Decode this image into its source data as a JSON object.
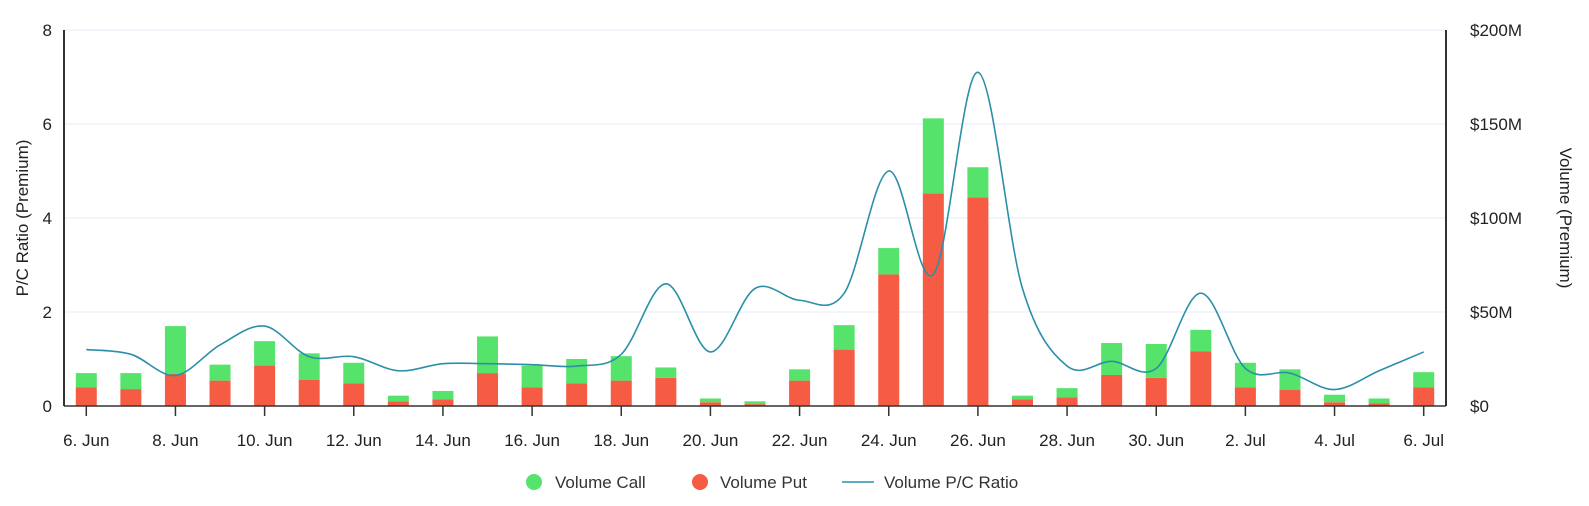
{
  "chart_data": {
    "type": "bar",
    "stacked": true,
    "categories": [
      "6. Jun",
      "7. Jun",
      "8. Jun",
      "9. Jun",
      "10. Jun",
      "11. Jun",
      "12. Jun",
      "13. Jun",
      "14. Jun",
      "15. Jun",
      "16. Jun",
      "17. Jun",
      "18. Jun",
      "19. Jun",
      "20. Jun",
      "21. Jun",
      "22. Jun",
      "23. Jun",
      "24. Jun",
      "25. Jun",
      "26. Jun",
      "27. Jun",
      "28. Jun",
      "29. Jun",
      "30. Jun",
      "1. Jul",
      "2. Jul",
      "3. Jul",
      "4. Jul",
      "5. Jul",
      "6. Jul"
    ],
    "x_tick_labels": [
      "6. Jun",
      "8. Jun",
      "10. Jun",
      "12. Jun",
      "14. Jun",
      "16. Jun",
      "18. Jun",
      "20. Jun",
      "22. Jun",
      "24. Jun",
      "26. Jun",
      "28. Jun",
      "30. Jun",
      "2. Jul",
      "4. Jul",
      "6. Jul"
    ],
    "x_tick_indices": [
      0,
      2,
      4,
      6,
      8,
      10,
      12,
      14,
      16,
      18,
      20,
      22,
      24,
      26,
      28,
      30
    ],
    "series": [
      {
        "name": "Volume Put",
        "type": "bar",
        "axis": "right",
        "color": "#f55c43",
        "values": [
          10,
          9,
          17,
          13.5,
          21.5,
          14,
          12,
          2.5,
          3.5,
          17.5,
          10,
          12,
          13.5,
          15,
          2,
          1,
          13.5,
          30,
          70,
          113,
          111,
          3.5,
          4.5,
          16.5,
          15,
          29,
          10,
          8.5,
          2,
          1.5,
          10
        ]
      },
      {
        "name": "Volume Call",
        "type": "bar",
        "axis": "right",
        "color": "#55e36b",
        "values": [
          7.5,
          8.5,
          25.5,
          8.5,
          13,
          14,
          11,
          3,
          4.5,
          19.5,
          11.5,
          13,
          13,
          5.5,
          2,
          1.5,
          6,
          13,
          14,
          40,
          16,
          2,
          5,
          17,
          18,
          11.5,
          13,
          11,
          4,
          2.5,
          8
        ]
      },
      {
        "name": "Volume P/C Ratio",
        "type": "line",
        "axis": "left",
        "color": "#2b8fa8",
        "values": [
          1.2,
          1.1,
          0.65,
          1.3,
          1.7,
          1.05,
          1.05,
          0.75,
          0.9,
          0.9,
          0.88,
          0.85,
          1.1,
          2.6,
          1.15,
          2.5,
          2.25,
          2.4,
          5.0,
          2.8,
          7.1,
          2.5,
          0.85,
          0.95,
          0.8,
          2.4,
          0.8,
          0.7,
          0.35,
          0.75,
          1.15
        ]
      }
    ],
    "y_left": {
      "label": "P/C Ratio (Premium)",
      "ylim": [
        0,
        8
      ],
      "ticks": [
        "0",
        "2",
        "4",
        "6",
        "8"
      ],
      "tick_values": [
        0,
        2,
        4,
        6,
        8
      ]
    },
    "y_right": {
      "label": "Volume (Premium)",
      "ylim": [
        0,
        200
      ],
      "ticks": [
        "$0",
        "$50M",
        "$100M",
        "$150M",
        "$200M"
      ],
      "tick_values": [
        0,
        50,
        100,
        150,
        200
      ],
      "unit": "$M"
    },
    "grid": true,
    "legend_position": "bottom-center",
    "legend": [
      {
        "label": "Volume Call",
        "color": "#55e36b",
        "marker": "circle"
      },
      {
        "label": "Volume Put",
        "color": "#f55c43",
        "marker": "circle"
      },
      {
        "label": "Volume P/C Ratio",
        "color": "#2b8fa8",
        "marker": "line"
      }
    ]
  }
}
